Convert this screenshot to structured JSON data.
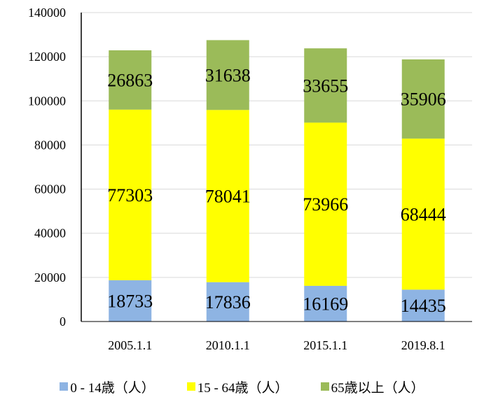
{
  "chart_data": {
    "type": "bar",
    "stacked": true,
    "categories": [
      "2005.1.1",
      "2010.1.1",
      "2015.1.1",
      "2019.8.1"
    ],
    "series": [
      {
        "name": "0 - 14歳（人）",
        "values": [
          18733,
          17836,
          16169,
          14435
        ],
        "color": "#8eb4e3"
      },
      {
        "name": "15 - 64歳（人）",
        "values": [
          77303,
          78041,
          73966,
          68444
        ],
        "color": "#ffff00"
      },
      {
        "name": "65歳以上（人）",
        "values": [
          26863,
          31638,
          33655,
          35906
        ],
        "color": "#9bbb59"
      }
    ],
    "ylim": [
      0,
      140000
    ],
    "yticks": [
      "0",
      "20000",
      "40000",
      "60000",
      "80000",
      "100000",
      "120000",
      "140000"
    ],
    "grid": true,
    "legend_position": "bottom",
    "data_labels": true
  }
}
